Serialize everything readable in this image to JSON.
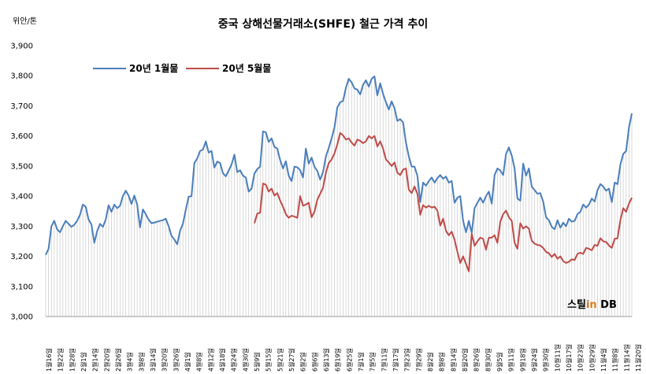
{
  "chart_data": {
    "type": "line",
    "title": "중국 상해선물거래소(SHFE) 철근 가격 추이",
    "unit_label": "위안/톤",
    "ylim": [
      3000,
      3900
    ],
    "yticks": [
      "3,000",
      "3,100",
      "3,200",
      "3,300",
      "3,400",
      "3,500",
      "3,600",
      "3,700",
      "3,800",
      "3,900"
    ],
    "legend_position": "top-left",
    "colors": {
      "jan_series": "#4a7ebb",
      "may_series": "#be4b48",
      "grid": "#c8c8c8"
    },
    "x_labels": [
      "1월16일",
      "1월22일",
      "1월28일",
      "2월1일",
      "2월14일",
      "2월20일",
      "2월26일",
      "3월4일",
      "3월8일",
      "3월14일",
      "3월20일",
      "3월26일",
      "4월1일",
      "4월8일",
      "4월12일",
      "4월18일",
      "4월24일",
      "4월30일",
      "5월9일",
      "5월15일",
      "5월21일",
      "5월27일",
      "6월2일",
      "6월6일",
      "6월13일",
      "6월19일",
      "6월25일",
      "7월1일",
      "7월5일",
      "7월11일",
      "7월17일",
      "7월23일",
      "7월29일",
      "8월2일",
      "8월8일",
      "8월14일",
      "8월20일",
      "8월26일",
      "8월30일",
      "9월5일",
      "9월11일",
      "9월18일",
      "9월24일",
      "9월30일",
      "10월11일",
      "10월17일",
      "10월23일",
      "10월29일",
      "11월4일",
      "11월8일",
      "11월14일",
      "11월20일"
    ],
    "series": [
      {
        "name": "20년 1월물",
        "values": [
          3205,
          3225,
          3300,
          3318,
          3290,
          3280,
          3300,
          3318,
          3308,
          3298,
          3305,
          3318,
          3338,
          3372,
          3365,
          3322,
          3306,
          3245,
          3284,
          3308,
          3298,
          3322,
          3370,
          3348,
          3372,
          3360,
          3368,
          3400,
          3418,
          3402,
          3374,
          3402,
          3372,
          3296,
          3356,
          3340,
          3322,
          3310,
          3312,
          3315,
          3318,
          3320,
          3325,
          3300,
          3268,
          3256,
          3240,
          3285,
          3308,
          3355,
          3398,
          3400,
          3510,
          3525,
          3550,
          3555,
          3582,
          3545,
          3550,
          3495,
          3515,
          3510,
          3476,
          3466,
          3485,
          3505,
          3538,
          3480,
          3486,
          3468,
          3462,
          3415,
          3425,
          3475,
          3490,
          3498,
          3615,
          3612,
          3580,
          3592,
          3564,
          3558,
          3520,
          3492,
          3516,
          3468,
          3450,
          3498,
          3496,
          3486,
          3462,
          3558,
          3508,
          3528,
          3498,
          3484,
          3455,
          3480,
          3532,
          3560,
          3592,
          3628,
          3695,
          3712,
          3716,
          3760,
          3790,
          3778,
          3758,
          3754,
          3738,
          3770,
          3785,
          3764,
          3790,
          3798,
          3735,
          3775,
          3740,
          3712,
          3688,
          3715,
          3692,
          3650,
          3656,
          3645,
          3578,
          3532,
          3498,
          3498,
          3468,
          3380,
          3445,
          3435,
          3450,
          3462,
          3445,
          3460,
          3470,
          3458,
          3465,
          3445,
          3450,
          3378,
          3395,
          3400,
          3318,
          3280,
          3318,
          3278,
          3360,
          3378,
          3395,
          3378,
          3400,
          3415,
          3375,
          3470,
          3492,
          3485,
          3470,
          3540,
          3562,
          3535,
          3492,
          3392,
          3385,
          3508,
          3468,
          3492,
          3432,
          3420,
          3408,
          3410,
          3382,
          3330,
          3320,
          3298,
          3290,
          3320,
          3295,
          3312,
          3300,
          3325,
          3315,
          3318,
          3340,
          3348,
          3372,
          3362,
          3372,
          3392,
          3382,
          3420,
          3440,
          3432,
          3418,
          3425,
          3380,
          3445,
          3440,
          3505,
          3540,
          3550,
          3628,
          3675
        ]
      },
      {
        "name": "20년 5월물",
        "values": [
          3310,
          3342,
          3345,
          3442,
          3438,
          3415,
          3425,
          3402,
          3410,
          3385,
          3365,
          3340,
          3328,
          3335,
          3332,
          3328,
          3400,
          3368,
          3372,
          3378,
          3330,
          3348,
          3388,
          3408,
          3428,
          3478,
          3510,
          3522,
          3542,
          3572,
          3610,
          3602,
          3588,
          3592,
          3578,
          3568,
          3588,
          3584,
          3576,
          3582,
          3600,
          3592,
          3600,
          3565,
          3582,
          3558,
          3522,
          3512,
          3500,
          3512,
          3478,
          3470,
          3488,
          3492,
          3422,
          3410,
          3432,
          3408,
          3338,
          3370,
          3362,
          3368,
          3362,
          3365,
          3352,
          3302,
          3325,
          3285,
          3270,
          3282,
          3255,
          3215,
          3178,
          3200,
          3175,
          3150,
          3275,
          3235,
          3250,
          3262,
          3258,
          3222,
          3262,
          3262,
          3270,
          3245,
          3315,
          3340,
          3352,
          3330,
          3318,
          3245,
          3225,
          3310,
          3292,
          3300,
          3292,
          3252,
          3242,
          3238,
          3236,
          3228,
          3215,
          3210,
          3198,
          3208,
          3192,
          3200,
          3184,
          3178,
          3182,
          3190,
          3188,
          3208,
          3212,
          3208,
          3228,
          3225,
          3220,
          3238,
          3235,
          3260,
          3250,
          3248,
          3236,
          3228,
          3258,
          3260,
          3320,
          3360,
          3348,
          3375,
          3395
        ]
      }
    ]
  },
  "watermark": {
    "part1": "스틸",
    "part2": "in",
    "part3": " DB"
  }
}
